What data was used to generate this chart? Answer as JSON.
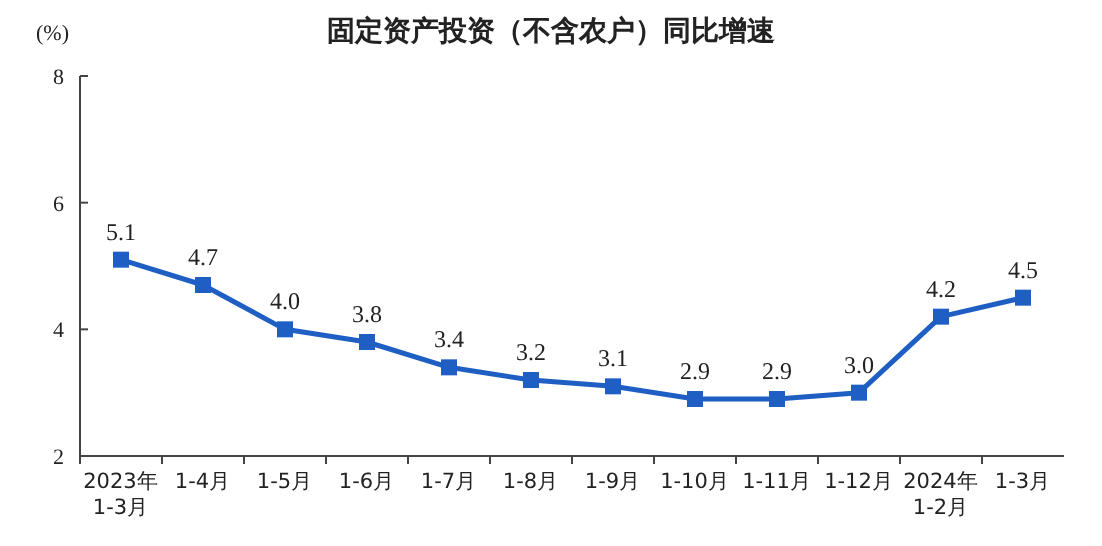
{
  "chart_data": {
    "type": "line",
    "title": "固定资产投资（不含农户）同比增速",
    "ylabel": "(%)",
    "categories": [
      "2023年\n1-3月",
      "1-4月",
      "1-5月",
      "1-6月",
      "1-7月",
      "1-8月",
      "1-9月",
      "1-10月",
      "1-11月",
      "1-12月",
      "2024年\n1-2月",
      "1-3月"
    ],
    "series": [
      {
        "color": "#1f5fc4",
        "values": [
          5.1,
          4.7,
          4.0,
          3.8,
          3.4,
          3.2,
          3.1,
          2.9,
          2.9,
          3.0,
          4.2,
          4.5
        ],
        "value_labels": [
          "5.1",
          "4.7",
          "4.0",
          "3.8",
          "3.4",
          "3.2",
          "3.1",
          "2.9",
          "2.9",
          "3.0",
          "4.2",
          "4.5"
        ]
      }
    ],
    "ylim": [
      2,
      8
    ],
    "yticks": [
      2,
      4,
      6,
      8
    ],
    "grid": false,
    "marker": "square",
    "line_style": "solid"
  }
}
